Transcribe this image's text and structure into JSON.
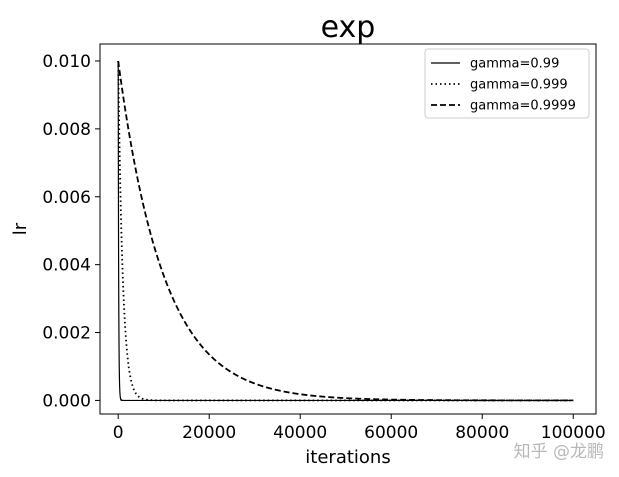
{
  "chart_data": {
    "type": "line",
    "title": "exp",
    "xlabel": "iterations",
    "ylabel": "lr",
    "xlim": [
      -4000,
      105000
    ],
    "ylim": [
      -0.0004,
      0.0105
    ],
    "xticks": [
      0,
      20000,
      40000,
      60000,
      80000,
      100000
    ],
    "xtick_labels": [
      "0",
      "20000",
      "40000",
      "60000",
      "80000",
      "100000"
    ],
    "yticks": [
      0.0,
      0.002,
      0.004,
      0.006,
      0.008,
      0.01
    ],
    "ytick_labels": [
      "0.000",
      "0.002",
      "0.004",
      "0.006",
      "0.008",
      "0.010"
    ],
    "grid": false,
    "legend_position": "top-right",
    "x_range": [
      0,
      100000
    ],
    "initial_lr": 0.01,
    "series": [
      {
        "name": "gamma=0.99",
        "gamma": 0.99,
        "style": "solid",
        "color": "#000000"
      },
      {
        "name": "gamma=0.999",
        "gamma": 0.999,
        "style": "dotted",
        "color": "#000000"
      },
      {
        "name": "gamma=0.9999",
        "gamma": 0.9999,
        "style": "dashed",
        "color": "#000000"
      }
    ]
  },
  "watermark": "知乎 @龙鹏"
}
